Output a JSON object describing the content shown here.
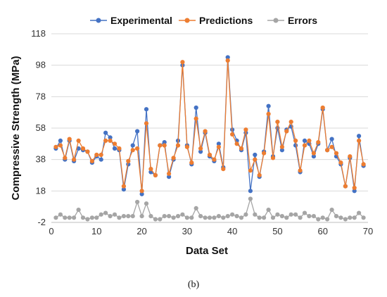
{
  "caption": "(b)",
  "chart_data": {
    "type": "line",
    "title": "",
    "xlabel": "Data Set",
    "ylabel": "Compressive Strength (MPa)",
    "xlim": [
      0,
      70
    ],
    "ylim": [
      -2,
      118
    ],
    "xticks": [
      0,
      10,
      20,
      30,
      40,
      50,
      60,
      70
    ],
    "yticks": [
      -2,
      18,
      38,
      58,
      78,
      98,
      118
    ],
    "legend_position": "top",
    "grid": "horizontal",
    "x": [
      1,
      2,
      3,
      4,
      5,
      6,
      7,
      8,
      9,
      10,
      11,
      12,
      13,
      14,
      15,
      16,
      17,
      18,
      19,
      20,
      21,
      22,
      23,
      24,
      25,
      26,
      27,
      28,
      29,
      30,
      31,
      32,
      33,
      34,
      35,
      36,
      37,
      38,
      39,
      40,
      41,
      42,
      43,
      44,
      45,
      46,
      47,
      48,
      49,
      50,
      51,
      52,
      53,
      54,
      55,
      56,
      57,
      58,
      59,
      60,
      61,
      62,
      63,
      64,
      65,
      66,
      67,
      68,
      69
    ],
    "series": [
      {
        "name": "Experimental",
        "color": "#4472C4",
        "values": [
          45,
          50,
          38,
          50,
          37,
          45,
          44,
          43,
          36,
          40,
          38,
          55,
          52,
          45,
          44,
          19,
          35,
          47,
          56,
          16,
          70,
          30,
          28,
          47,
          49,
          27,
          38,
          50,
          98,
          47,
          35,
          71,
          43,
          55,
          40,
          37,
          48,
          33,
          103,
          57,
          50,
          44,
          55,
          18,
          41,
          27,
          43,
          72,
          40,
          58,
          44,
          57,
          59,
          47,
          30,
          50,
          48,
          40,
          48,
          70,
          44,
          51,
          40,
          35,
          21,
          39,
          18,
          53,
          34
        ],
        "marker": "circle"
      },
      {
        "name": "Predictions",
        "color": "#ED7D31",
        "values": [
          46,
          47,
          39,
          51,
          38,
          50,
          45,
          43,
          37,
          41,
          41,
          50,
          50,
          48,
          45,
          21,
          37,
          44,
          45,
          18,
          61,
          32,
          28,
          47,
          47,
          29,
          39,
          47,
          100,
          46,
          36,
          64,
          45,
          56,
          41,
          38,
          46,
          32,
          101,
          54,
          48,
          45,
          57,
          31,
          38,
          28,
          42,
          67,
          39,
          62,
          46,
          56,
          62,
          50,
          31,
          47,
          50,
          42,
          49,
          71,
          44,
          46,
          42,
          36,
          21,
          40,
          20,
          50,
          35
        ],
        "marker": "circle"
      },
      {
        "name": "Errors",
        "color": "#A5A5A5",
        "values": [
          1,
          3,
          1,
          1,
          1,
          6,
          1,
          0,
          1,
          1,
          3,
          4,
          2,
          3,
          1,
          2,
          2,
          2,
          11,
          2,
          10,
          2,
          0,
          0,
          2,
          2,
          1,
          2,
          3,
          1,
          1,
          7,
          2,
          1,
          1,
          1,
          2,
          1,
          2,
          3,
          2,
          1,
          3,
          13,
          3,
          1,
          1,
          6,
          1,
          3,
          2,
          1,
          3,
          3,
          1,
          4,
          2,
          2,
          0,
          1,
          0,
          6,
          2,
          1,
          0,
          1,
          1,
          4,
          1
        ],
        "marker": "circle"
      }
    ]
  }
}
